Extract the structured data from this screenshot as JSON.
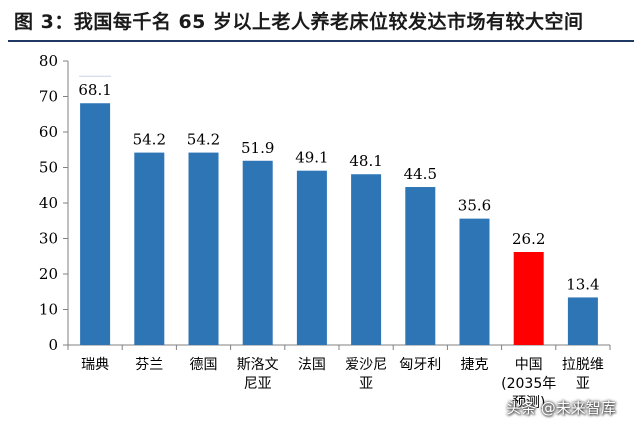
{
  "title": "图 3：我国每千名 65 岁以上老人养老床位较发达市场有较大空间",
  "watermark": "头条 @未来智库",
  "colors": {
    "bar": "#2e75b6",
    "highlight": "#ff0000",
    "title_rule": "#1f3864"
  },
  "chart_data": {
    "type": "bar",
    "title": "",
    "xlabel": "",
    "ylabel": "",
    "ylim": [
      0,
      80
    ],
    "yticks": [
      0,
      10,
      20,
      30,
      40,
      50,
      60,
      70,
      80
    ],
    "grid": false,
    "legend": "none",
    "categories": [
      [
        "瑞典"
      ],
      [
        "芬兰"
      ],
      [
        "德国"
      ],
      [
        "斯洛文",
        "尼亚"
      ],
      [
        "法国"
      ],
      [
        "爱沙尼",
        "亚"
      ],
      [
        "匈牙利"
      ],
      [
        "捷克"
      ],
      [
        "中国",
        "(2035年",
        "预测)"
      ],
      [
        "拉脱维",
        "亚"
      ]
    ],
    "values": [
      68.1,
      54.2,
      54.2,
      51.9,
      49.1,
      48.1,
      44.5,
      35.6,
      26.2,
      13.4
    ],
    "data_labels": [
      "68.1",
      "54.2",
      "54.2",
      "51.9",
      "49.1",
      "48.1",
      "44.5",
      "35.6",
      "26.2",
      "13.4"
    ],
    "highlight_index": 8
  }
}
